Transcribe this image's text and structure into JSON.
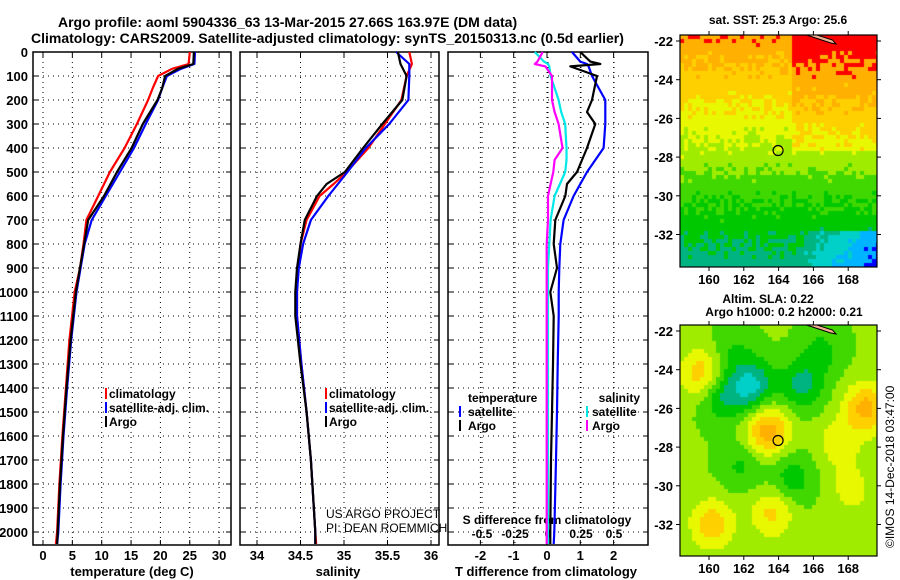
{
  "title": {
    "line1": "Argo profile: aoml 5904336_63 13-Mar-2015 27.66S 163.97E (DM data)",
    "line2": "Climatology: CARS2009. Satellite-adjusted climatology: synTS_20150313.nc (0.5d earlier)"
  },
  "colors": {
    "climatology": "#ff0000",
    "satellite": "#0000ff",
    "argo": "#000000",
    "sal_satellite": "#00e8e8",
    "sal_argo": "#ff00ff"
  },
  "credit": {
    "line1": "US ARGO PROJECT",
    "line2": "PI: DEAN ROEMMICH"
  },
  "stamp": "©IMOS 14-Dec-2018 03:47:00",
  "chart_data": [
    {
      "type": "line",
      "id": "temperature",
      "xlabel": "temperature (deg C)",
      "ylabel": "",
      "xlim": [
        -1.7,
        32
      ],
      "ylim": [
        2055,
        0
      ],
      "xticks": [
        0,
        5,
        10,
        15,
        20,
        25,
        30
      ],
      "yticks": [
        0,
        100,
        200,
        300,
        400,
        500,
        600,
        700,
        800,
        900,
        1000,
        1100,
        1200,
        1300,
        1400,
        1500,
        1600,
        1700,
        1800,
        1900,
        2000
      ],
      "grid": true,
      "legend_placement": "middle",
      "legend": [
        "climatology",
        "satellite-adj. clim.",
        "Argo"
      ],
      "depth": [
        0,
        50,
        70,
        100,
        150,
        200,
        300,
        400,
        500,
        600,
        700,
        800,
        900,
        1000,
        1200,
        1400,
        1600,
        1800,
        2000,
        2050
      ],
      "series": [
        {
          "name": "climatology",
          "color": "#ff0000",
          "values": [
            25.0,
            24.8,
            22,
            19.6,
            18.7,
            17.9,
            16.0,
            13.9,
            11.4,
            9.4,
            7.4,
            6.9,
            6.3,
            5.4,
            4.5,
            3.9,
            3.3,
            2.8,
            2.4,
            2.2
          ]
        },
        {
          "name": "satellite-adj. clim.",
          "color": "#0000ff",
          "values": [
            25.9,
            25.8,
            23.5,
            21.1,
            20.3,
            19.6,
            17.5,
            15.5,
            13.1,
            10.7,
            8.3,
            7.1,
            6.4,
            5.7,
            4.8,
            4.1,
            3.5,
            3.0,
            2.6,
            2.4
          ]
        },
        {
          "name": "Argo",
          "color": "#000000",
          "values": [
            25.7,
            25.6,
            23,
            20.8,
            20.3,
            19.5,
            17.0,
            15.1,
            12.6,
            10.4,
            7.7,
            7.0,
            6.3,
            5.6,
            4.7,
            4.0,
            3.4,
            2.9,
            2.5,
            2.4
          ]
        }
      ]
    },
    {
      "type": "line",
      "id": "salinity",
      "xlabel": "salinity",
      "ylabel": "",
      "xlim": [
        33.8,
        36.05
      ],
      "ylim": [
        2055,
        0
      ],
      "xticks": [
        34,
        34.5,
        35,
        35.5,
        36
      ],
      "grid": true,
      "legend_placement": "middle",
      "legend": [
        "climatology",
        "satellite-adj. clim.",
        "Argo"
      ],
      "depth": [
        0,
        50,
        100,
        200,
        300,
        400,
        500,
        550,
        600,
        700,
        800,
        900,
        1000,
        1100,
        1300,
        1500,
        1700,
        2000,
        2050
      ],
      "series": [
        {
          "name": "climatology",
          "color": "#ff0000",
          "values": [
            35.75,
            35.78,
            35.72,
            35.66,
            35.47,
            35.28,
            35.03,
            34.88,
            34.72,
            34.57,
            34.5,
            34.47,
            34.46,
            34.46,
            34.51,
            34.57,
            34.62,
            34.67,
            34.68
          ]
        },
        {
          "name": "satellite-adj. clim.",
          "color": "#0000ff",
          "values": [
            35.6,
            35.75,
            35.75,
            35.74,
            35.52,
            35.25,
            35.04,
            34.93,
            34.82,
            34.62,
            34.53,
            34.48,
            34.46,
            34.46,
            34.51,
            34.57,
            34.62,
            34.67,
            34.67
          ]
        },
        {
          "name": "Argo",
          "color": "#000000",
          "values": [
            35.62,
            35.65,
            35.72,
            35.67,
            35.44,
            35.22,
            35.01,
            34.8,
            34.69,
            34.55,
            34.5,
            34.46,
            34.44,
            34.44,
            34.5,
            34.57,
            34.62,
            34.67,
            34.67
          ]
        }
      ]
    },
    {
      "type": "line",
      "id": "differences",
      "xlabel": "T difference from climatology",
      "x2label": "S difference from climatology",
      "xlim": [
        -3,
        3
      ],
      "ylim": [
        2055,
        0
      ],
      "xticks": [
        -2,
        -1,
        0,
        1,
        2
      ],
      "xtick_labels": [
        "-2",
        "-1",
        "0",
        "1",
        "2"
      ],
      "x2ticks": [
        -0.5,
        -0.25,
        0,
        0.25,
        0.5
      ],
      "x2tick_labels": [
        "-0.5",
        "-0.25",
        "0",
        "0.25",
        "0.5"
      ],
      "grid": true,
      "legend_left": {
        "title": "temperature",
        "items": [
          "satellite",
          "Argo"
        ]
      },
      "legend_right": {
        "title": "salinity",
        "items": [
          "satellite",
          "Argo"
        ]
      },
      "depth": [
        0,
        40,
        50,
        60,
        100,
        200,
        250,
        300,
        400,
        450,
        500,
        550,
        600,
        700,
        800,
        900,
        1000,
        1100,
        1300,
        1500,
        1700,
        2000,
        2050
      ],
      "t_series": [
        {
          "name": "temperature satellite",
          "color": "#0000ff",
          "values": [
            0.75,
            1.0,
            1.2,
            1.25,
            1.35,
            1.75,
            1.75,
            1.75,
            1.7,
            1.45,
            1.2,
            1.0,
            0.8,
            0.5,
            0.4,
            0.37,
            0.35,
            0.35,
            0.32,
            0.3,
            0.27,
            0.22,
            0.2
          ]
        },
        {
          "name": "temperature Argo",
          "color": "#000000",
          "values": [
            1.0,
            1.3,
            1.6,
            0.7,
            1.5,
            1.35,
            1.2,
            1.45,
            1.2,
            1.05,
            0.9,
            0.6,
            0.55,
            0.25,
            0.2,
            0.3,
            0.1,
            0.2,
            0.18,
            0.15,
            0.12,
            0.1,
            0.1
          ]
        }
      ],
      "s_series": [
        {
          "name": "salinity satellite",
          "color": "#00e8e8",
          "values": [
            -0.1,
            -0.03,
            0,
            0.01,
            0.02,
            0.08,
            0.1,
            0.13,
            0.14,
            0.14,
            0.13,
            0.09,
            0.05,
            0.02,
            0.01,
            0,
            0,
            0,
            0,
            0,
            0,
            0,
            0
          ]
        },
        {
          "name": "salinity Argo",
          "color": "#ff00ff",
          "values": [
            -0.04,
            -0.08,
            -0.1,
            -0.02,
            0.03,
            0.03,
            0.05,
            0.08,
            0.11,
            0.05,
            0.04,
            0.02,
            0,
            0,
            -0.01,
            -0.01,
            -0.01,
            -0.01,
            -0.01,
            -0.01,
            -0.01,
            -0.01,
            -0.01
          ]
        }
      ]
    },
    {
      "type": "heatmap",
      "id": "sst-map",
      "title": "sat. SST: 25.3 Argo: 25.6",
      "xlim": [
        158.4,
        169.8
      ],
      "ylim": [
        -33.7,
        -21.7
      ],
      "xticks": [
        160,
        162,
        164,
        166,
        168
      ],
      "yticks": [
        -22,
        -24,
        -26,
        -28,
        -30,
        -32
      ],
      "profile_location": {
        "lon": 163.97,
        "lat": -27.66
      }
    },
    {
      "type": "heatmap",
      "id": "sla-map",
      "title": "Altim. SLA: 0.22",
      "subtitle": "Argo h1000: 0.2 h2000: 0.21",
      "xlim": [
        158.4,
        169.8
      ],
      "ylim": [
        -33.7,
        -21.7
      ],
      "xticks": [
        160,
        162,
        164,
        166,
        168
      ],
      "yticks": [
        -22,
        -24,
        -26,
        -28,
        -30,
        -32
      ],
      "profile_location": {
        "lon": 163.97,
        "lat": -27.66
      }
    }
  ]
}
